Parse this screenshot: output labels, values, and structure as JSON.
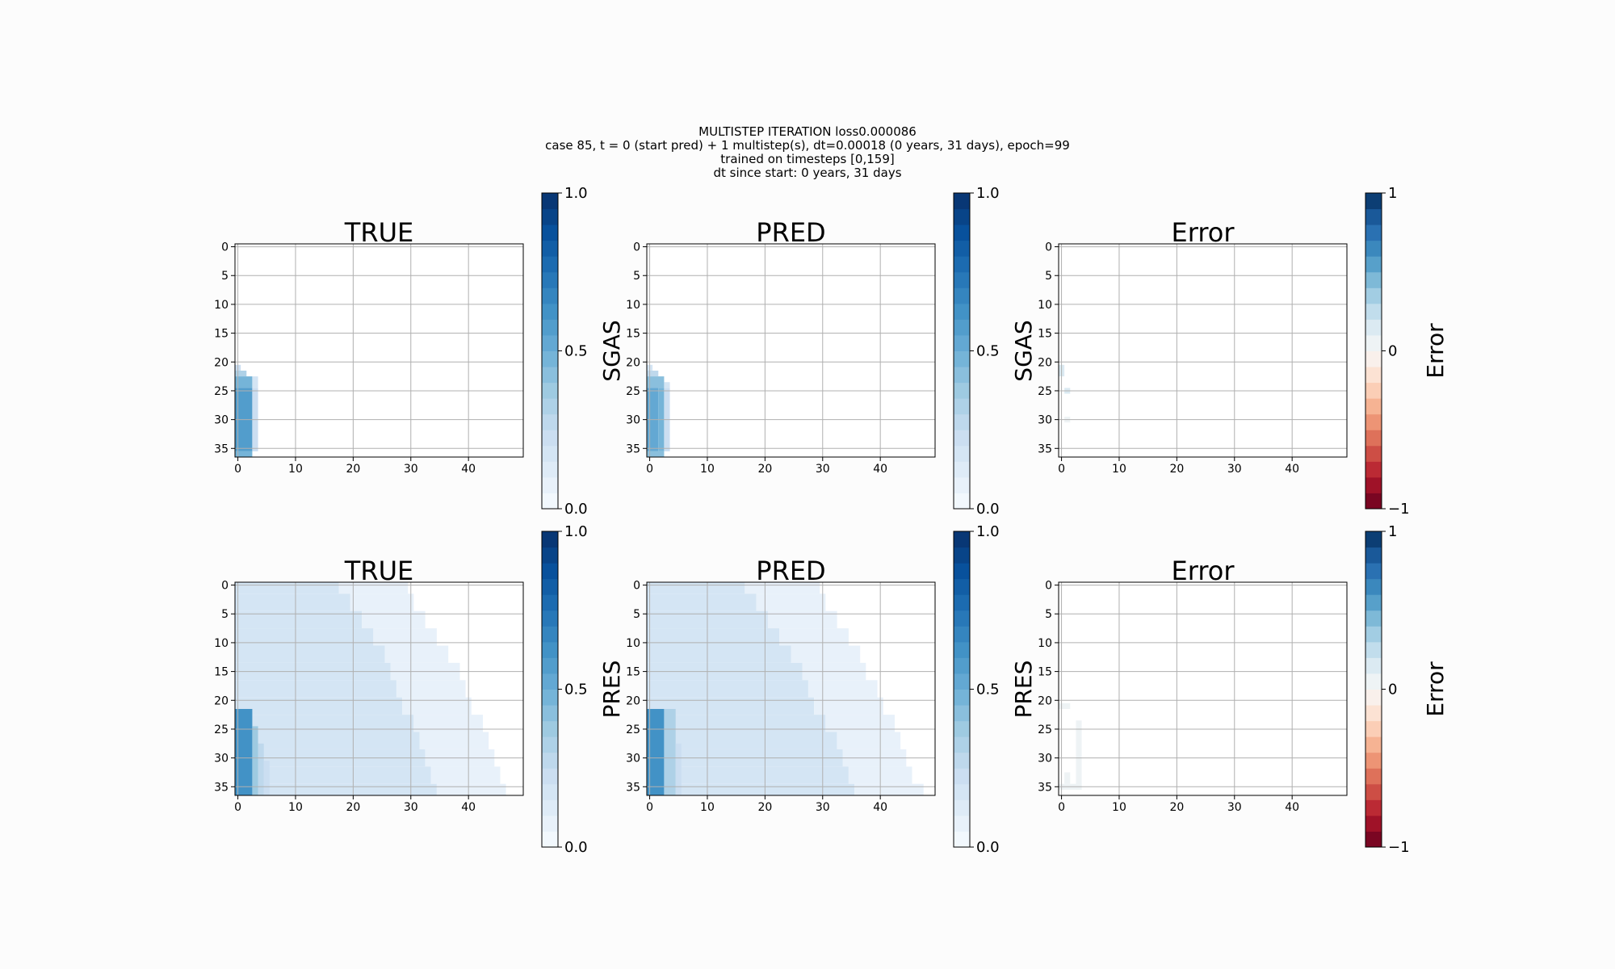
{
  "suptitle": [
    "MULTISTEP ITERATION loss0.000086",
    "case 85, t = 0 (start pred) + 1 multistep(s), dt=0.00018 (0 years, 31 days), epoch=99",
    "trained on timesteps [0,159]",
    "dt since start: 0 years, 31 days"
  ],
  "colormaps": {
    "Blues": [
      "#f7fbff",
      "#deebf7",
      "#c6dbef",
      "#9ecae1",
      "#6baed6",
      "#4292c6",
      "#2171b5",
      "#08519c",
      "#08306b"
    ],
    "RdBu": [
      "#67001f",
      "#b2182b",
      "#d6604d",
      "#f4a582",
      "#fddbc7",
      "#f7f7f7",
      "#d1e5f0",
      "#92c5de",
      "#4393c3",
      "#2166ac",
      "#053061"
    ]
  },
  "chart_data": [
    {
      "type": "heatmap",
      "title": "TRUE",
      "colorbar_label": "SGAS",
      "colormap": "Blues",
      "levels": 20,
      "clim": [
        0,
        1
      ],
      "cbar_ticks": [
        {
          "value": 0,
          "label": "0.0"
        },
        {
          "value": 0.5,
          "label": "0.5"
        },
        {
          "value": 1,
          "label": "1.0"
        }
      ],
      "xlim": [
        -0.5,
        49.5
      ],
      "ylim": [
        36.5,
        -0.5
      ],
      "xticks": [
        0,
        10,
        20,
        30,
        40
      ],
      "yticks": [
        0,
        5,
        10,
        15,
        20,
        25,
        30,
        35
      ],
      "grid": true,
      "cells": [
        [
          21,
          21,
          0,
          0,
          0.2
        ],
        [
          22,
          22,
          0,
          1,
          0.3
        ],
        [
          23,
          24,
          0,
          2,
          0.45
        ],
        [
          23,
          24,
          3,
          3,
          0.15
        ],
        [
          25,
          35,
          0,
          2,
          0.55
        ],
        [
          25,
          35,
          3,
          3,
          0.2
        ],
        [
          36,
          36,
          0,
          2,
          0.45
        ]
      ]
    },
    {
      "type": "heatmap",
      "title": "PRED",
      "colorbar_label": "SGAS",
      "colormap": "Blues",
      "levels": 20,
      "clim": [
        0,
        1
      ],
      "cbar_ticks": [
        {
          "value": 0,
          "label": "0.0"
        },
        {
          "value": 0.5,
          "label": "0.5"
        },
        {
          "value": 1,
          "label": "1.0"
        }
      ],
      "xlim": [
        -0.5,
        49.5
      ],
      "ylim": [
        36.5,
        -0.5
      ],
      "xticks": [
        0,
        10,
        20,
        30,
        40
      ],
      "yticks": [
        0,
        5,
        10,
        15,
        20,
        25,
        30,
        35
      ],
      "grid": true,
      "cells": [
        [
          21,
          21,
          0,
          0,
          0.15
        ],
        [
          22,
          22,
          0,
          1,
          0.25
        ],
        [
          23,
          24,
          0,
          2,
          0.4
        ],
        [
          24,
          24,
          3,
          3,
          0.15
        ],
        [
          25,
          35,
          0,
          1,
          0.5
        ],
        [
          25,
          35,
          2,
          2,
          0.45
        ],
        [
          25,
          35,
          3,
          3,
          0.2
        ],
        [
          36,
          36,
          0,
          2,
          0.4
        ]
      ]
    },
    {
      "type": "heatmap",
      "title": "Error",
      "colorbar_label": "Error",
      "colormap": "RdBu",
      "levels": 20,
      "clim": [
        -1,
        1
      ],
      "cbar_ticks": [
        {
          "value": -1,
          "label": "−1"
        },
        0,
        1
      ],
      "xlim": [
        -0.5,
        49.5
      ],
      "ylim": [
        36.5,
        -0.5
      ],
      "xticks": [
        0,
        10,
        20,
        30,
        40
      ],
      "yticks": [
        0,
        5,
        10,
        15,
        20,
        25,
        30,
        35
      ],
      "grid": true,
      "cells": [
        [
          21,
          22,
          0,
          0,
          0.1
        ],
        [
          25,
          25,
          1,
          1,
          0.1
        ],
        [
          30,
          30,
          1,
          1,
          0.08
        ]
      ]
    },
    {
      "type": "heatmap",
      "title": "TRUE",
      "colorbar_label": "PRES",
      "colormap": "Blues",
      "levels": 20,
      "clim": [
        0,
        1
      ],
      "cbar_ticks": [
        {
          "value": 0,
          "label": "0.0"
        },
        {
          "value": 0.5,
          "label": "0.5"
        },
        {
          "value": 1,
          "label": "1.0"
        }
      ],
      "xlim": [
        -0.5,
        49.5
      ],
      "ylim": [
        36.5,
        -0.5
      ],
      "xticks": [
        0,
        10,
        20,
        30,
        40
      ],
      "yticks": [
        0,
        5,
        10,
        15,
        20,
        25,
        30,
        35
      ],
      "grid": true,
      "cells": [
        [
          0,
          1,
          0,
          17,
          0.15
        ],
        [
          0,
          1,
          18,
          29,
          0.08
        ],
        [
          2,
          4,
          0,
          19,
          0.15
        ],
        [
          2,
          4,
          20,
          30,
          0.08
        ],
        [
          5,
          7,
          0,
          21,
          0.15
        ],
        [
          5,
          7,
          22,
          32,
          0.08
        ],
        [
          8,
          10,
          0,
          23,
          0.15
        ],
        [
          8,
          10,
          24,
          34,
          0.08
        ],
        [
          11,
          13,
          0,
          25,
          0.15
        ],
        [
          11,
          13,
          26,
          36,
          0.08
        ],
        [
          14,
          16,
          0,
          26,
          0.15
        ],
        [
          14,
          16,
          27,
          38,
          0.08
        ],
        [
          17,
          19,
          0,
          27,
          0.15
        ],
        [
          17,
          19,
          28,
          39,
          0.08
        ],
        [
          20,
          22,
          0,
          28,
          0.15
        ],
        [
          20,
          22,
          29,
          40,
          0.08
        ],
        [
          23,
          25,
          0,
          30,
          0.15
        ],
        [
          23,
          25,
          31,
          42,
          0.08
        ],
        [
          26,
          28,
          0,
          31,
          0.15
        ],
        [
          26,
          28,
          32,
          43,
          0.08
        ],
        [
          29,
          31,
          0,
          32,
          0.15
        ],
        [
          29,
          31,
          33,
          44,
          0.08
        ],
        [
          32,
          34,
          0,
          33,
          0.15
        ],
        [
          32,
          34,
          34,
          45,
          0.08
        ],
        [
          35,
          36,
          0,
          34,
          0.15
        ],
        [
          35,
          36,
          35,
          46,
          0.08
        ],
        [
          22,
          36,
          0,
          2,
          0.6
        ],
        [
          25,
          36,
          3,
          3,
          0.35
        ],
        [
          28,
          36,
          4,
          4,
          0.25
        ],
        [
          31,
          36,
          5,
          5,
          0.2
        ]
      ]
    },
    {
      "type": "heatmap",
      "title": "PRED",
      "colorbar_label": "PRES",
      "colormap": "Blues",
      "levels": 20,
      "clim": [
        0,
        1
      ],
      "cbar_ticks": [
        {
          "value": 0,
          "label": "0.0"
        },
        {
          "value": 0.5,
          "label": "0.5"
        },
        {
          "value": 1,
          "label": "1.0"
        }
      ],
      "xlim": [
        -0.5,
        49.5
      ],
      "ylim": [
        36.5,
        -0.5
      ],
      "xticks": [
        0,
        10,
        20,
        30,
        40
      ],
      "yticks": [
        0,
        5,
        10,
        15,
        20,
        25,
        30,
        35
      ],
      "grid": true,
      "cells": [
        [
          0,
          1,
          0,
          16,
          0.15
        ],
        [
          0,
          1,
          17,
          29,
          0.08
        ],
        [
          2,
          4,
          0,
          18,
          0.15
        ],
        [
          2,
          4,
          19,
          30,
          0.08
        ],
        [
          5,
          7,
          0,
          20,
          0.15
        ],
        [
          5,
          7,
          21,
          32,
          0.08
        ],
        [
          8,
          10,
          0,
          22,
          0.15
        ],
        [
          8,
          10,
          23,
          34,
          0.08
        ],
        [
          11,
          13,
          0,
          24,
          0.15
        ],
        [
          11,
          13,
          25,
          36,
          0.08
        ],
        [
          14,
          16,
          0,
          26,
          0.15
        ],
        [
          14,
          16,
          27,
          37,
          0.08
        ],
        [
          17,
          19,
          0,
          27,
          0.15
        ],
        [
          17,
          19,
          28,
          39,
          0.08
        ],
        [
          20,
          22,
          0,
          28,
          0.15
        ],
        [
          20,
          22,
          29,
          40,
          0.08
        ],
        [
          23,
          25,
          0,
          30,
          0.15
        ],
        [
          23,
          25,
          31,
          42,
          0.08
        ],
        [
          26,
          28,
          0,
          32,
          0.15
        ],
        [
          26,
          28,
          33,
          43,
          0.08
        ],
        [
          29,
          31,
          0,
          33,
          0.15
        ],
        [
          29,
          31,
          34,
          44,
          0.08
        ],
        [
          32,
          34,
          0,
          34,
          0.15
        ],
        [
          32,
          34,
          35,
          45,
          0.08
        ],
        [
          35,
          36,
          0,
          35,
          0.15
        ],
        [
          35,
          36,
          36,
          47,
          0.08
        ],
        [
          22,
          36,
          0,
          2,
          0.6
        ],
        [
          22,
          36,
          3,
          4,
          0.3
        ],
        [
          28,
          36,
          5,
          5,
          0.2
        ]
      ]
    },
    {
      "type": "heatmap",
      "title": "Error",
      "colorbar_label": "Error",
      "colormap": "RdBu",
      "levels": 20,
      "clim": [
        -1,
        1
      ],
      "cbar_ticks": [
        {
          "value": -1,
          "label": "−1"
        },
        0,
        1
      ],
      "xlim": [
        -0.5,
        49.5
      ],
      "ylim": [
        36.5,
        -0.5
      ],
      "xticks": [
        0,
        10,
        20,
        30,
        40
      ],
      "yticks": [
        0,
        5,
        10,
        15,
        20,
        25,
        30,
        35
      ],
      "grid": true,
      "cells": [
        [
          21,
          21,
          0,
          1,
          0.08
        ],
        [
          24,
          35,
          3,
          3,
          0.08
        ],
        [
          33,
          34,
          1,
          1,
          0.08
        ],
        [
          35,
          35,
          0,
          3,
          0.06
        ]
      ]
    }
  ]
}
